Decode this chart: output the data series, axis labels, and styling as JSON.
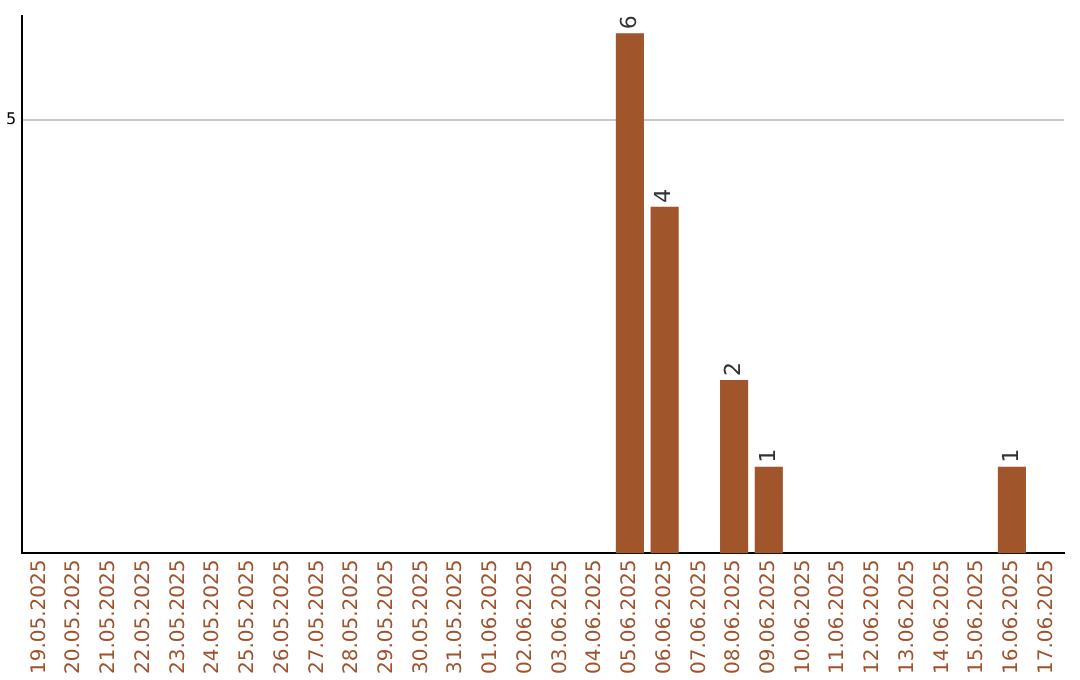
{
  "chart_data": {
    "type": "bar",
    "categories": [
      "19.05.2025",
      "20.05.2025",
      "21.05.2025",
      "22.05.2025",
      "23.05.2025",
      "24.05.2025",
      "25.05.2025",
      "26.05.2025",
      "27.05.2025",
      "28.05.2025",
      "29.05.2025",
      "30.05.2025",
      "31.05.2025",
      "01.06.2025",
      "02.06.2025",
      "03.06.2025",
      "04.06.2025",
      "05.06.2025",
      "06.06.2025",
      "07.06.2025",
      "08.06.2025",
      "09.06.2025",
      "10.06.2025",
      "11.06.2025",
      "12.06.2025",
      "13.06.2025",
      "14.06.2025",
      "15.06.2025",
      "16.06.2025",
      "17.06.2025"
    ],
    "values": [
      null,
      null,
      null,
      null,
      null,
      null,
      null,
      null,
      null,
      null,
      null,
      null,
      null,
      null,
      null,
      null,
      null,
      6,
      4,
      null,
      2,
      1,
      null,
      null,
      null,
      null,
      null,
      null,
      1,
      null
    ],
    "value_labels": [
      null,
      null,
      null,
      null,
      null,
      null,
      null,
      null,
      null,
      null,
      null,
      null,
      null,
      null,
      null,
      null,
      null,
      "6",
      "4",
      null,
      "2",
      "1",
      null,
      null,
      null,
      null,
      null,
      null,
      "1",
      null
    ],
    "color": "#a0562a",
    "ylim": [
      0,
      6.2
    ],
    "yticks": [
      5
    ],
    "grid": "y",
    "legend": false
  }
}
